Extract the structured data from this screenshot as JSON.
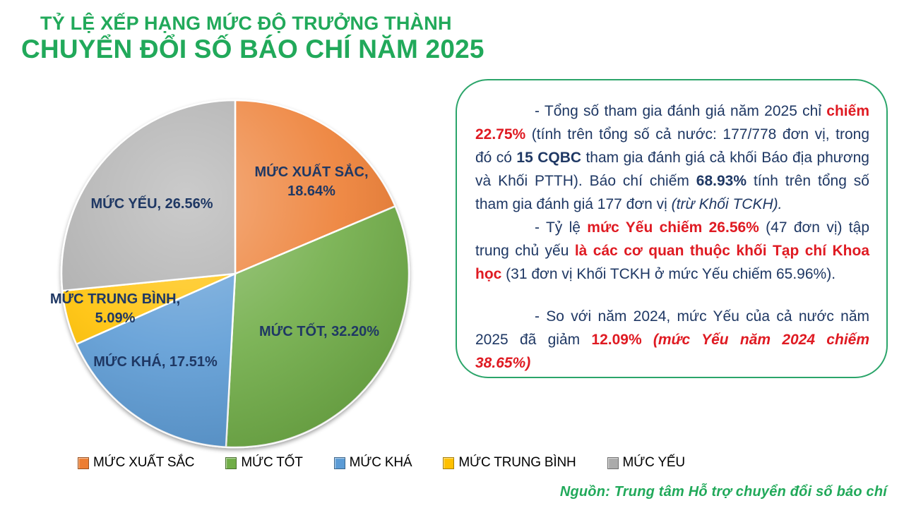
{
  "title": {
    "line1": "TỶ LỆ XẾP HẠNG MỨC ĐỘ TRƯỞNG THÀNH",
    "line2": "CHUYỂN ĐỔI SỐ BÁO CHÍ NĂM 2025"
  },
  "chart_data": {
    "type": "pie",
    "title": "TỶ LỆ XẾP HẠNG MỨC ĐỘ TRƯỞNG THÀNH CHUYỂN ĐỔI SỐ BÁO CHÍ NĂM 2025",
    "categories": [
      "MỨC XUẤT SẮC",
      "MỨC TỐT",
      "MỨC KHÁ",
      "MỨC TRUNG BÌNH",
      "MỨC YẾU"
    ],
    "values": [
      18.64,
      32.2,
      17.51,
      5.09,
      26.56
    ],
    "colors": [
      "#ED7D31",
      "#70AD47",
      "#5B9BD5",
      "#FFC000",
      "#ABABAB"
    ],
    "data_labels": [
      "MỨC XUẤT SẮC, 18.64%",
      "MỨC TỐT, 32.20%",
      "MỨC KHÁ, 17.51%",
      "MỨC TRUNG BÌNH, 5.09%",
      "MỨC YẾU, 26.56%"
    ],
    "start_angle_deg": 0,
    "direction": "clockwise",
    "legend_position": "bottom"
  },
  "pie": {
    "labels": {
      "xuat_sac_1": "MỨC XUẤT SẮC,",
      "xuat_sac_2": "18.64%",
      "tot": "MỨC TỐT, 32.20%",
      "kha": "MỨC KHÁ, 17.51%",
      "trung_binh_1": "MỨC TRUNG BÌNH,",
      "trung_binh_2": "5.09%",
      "yeu": "MỨC YẾU, 26.56%"
    }
  },
  "info_box": {
    "paragraphs": [
      {
        "gap_before": false,
        "runs": [
          {
            "t": "- Tổng số tham gia đánh giá năm 2025 chỉ ",
            "s": "n"
          },
          {
            "t": "chiếm 22.75%",
            "s": "rb"
          },
          {
            "t": " (tính trên tổng số cả nước: 177/778 đơn vị, trong đó có ",
            "s": "n"
          },
          {
            "t": "15 CQBC",
            "s": "nb"
          },
          {
            "t": " tham gia đánh giá cả khối Báo địa phương và Khối PTTH). Báo chí chiếm ",
            "s": "n"
          },
          {
            "t": "68.93%",
            "s": "nb"
          },
          {
            "t": " tính trên tổng số tham gia đánh giá 177 đơn vị ",
            "s": "n"
          },
          {
            "t": "(trừ Khối TCKH).",
            "s": "ni"
          }
        ]
      },
      {
        "gap_before": false,
        "runs": [
          {
            "t": "- Tỷ lệ ",
            "s": "n"
          },
          {
            "t": "mức Yếu chiếm 26.56%",
            "s": "rb"
          },
          {
            "t": " (47 đơn vị) tập trung chủ yếu ",
            "s": "n"
          },
          {
            "t": "là các cơ quan thuộc khối Tạp chí Khoa học",
            "s": "rb"
          },
          {
            "t": " (31 đơn vị Khối TCKH ở mức Yếu chiếm 65.96%).",
            "s": "n"
          }
        ]
      },
      {
        "gap_before": true,
        "runs": [
          {
            "t": "- So với năm 2024, mức Yếu của cả nước năm 2025 đã giảm ",
            "s": "n"
          },
          {
            "t": "12.09% ",
            "s": "rb"
          },
          {
            "t": "(mức Yếu năm 2024 chiếm 38.65%)",
            "s": "rbi"
          }
        ]
      }
    ]
  },
  "source": "Nguồn: Trung tâm Hỗ trợ chuyển đổi số báo chí",
  "colors": {
    "title_green": "#21A95A",
    "box_border_green": "#2BA56A",
    "text_navy": "#1F3864",
    "text_red": "#DF1A22"
  }
}
